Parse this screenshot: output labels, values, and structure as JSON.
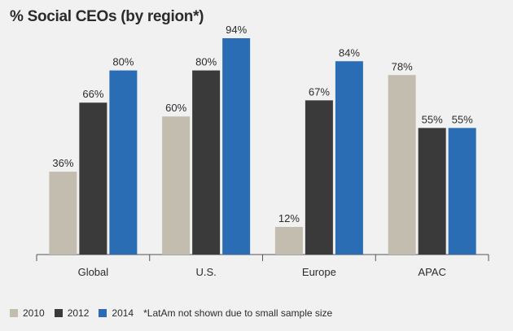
{
  "chart_data": {
    "type": "bar",
    "title": "% Social CEOs (by region*)",
    "categories": [
      "Global",
      "U.S.",
      "Europe",
      "APAC"
    ],
    "series": [
      {
        "name": "2010",
        "values": [
          36,
          60,
          12,
          78
        ],
        "labels": [
          "36%",
          "60%",
          "12%",
          "78%"
        ]
      },
      {
        "name": "2012",
        "values": [
          66,
          80,
          67,
          55
        ],
        "labels": [
          "66%",
          "80%",
          "67%",
          "55%"
        ]
      },
      {
        "name": "2014",
        "values": [
          80,
          94,
          84,
          55
        ],
        "labels": [
          "80%",
          "94%",
          "84%",
          "55%"
        ]
      }
    ],
    "ylim": [
      0,
      100
    ],
    "grid": false,
    "legend_position": "bottom-left",
    "footnote": "*LatAm not shown due to small sample size"
  },
  "colors": {
    "2010": "#c2bdae",
    "2012": "#3a3a3a",
    "2014": "#2a6db5",
    "axis": "#555555",
    "text": "#2b2b2b"
  }
}
